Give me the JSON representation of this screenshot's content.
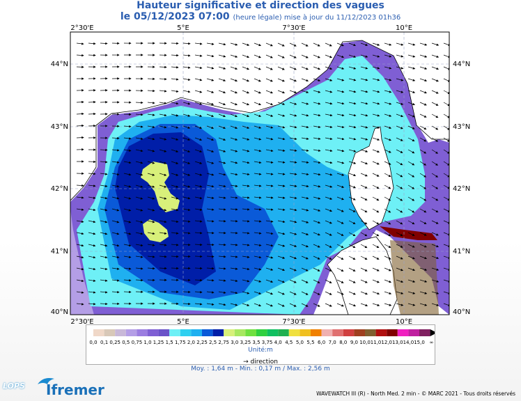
{
  "header": {
    "title": "Hauteur significative et direction des vagues",
    "date": "le 05/12/2023 07:00",
    "update_note": "(heure légale) mise à jour du 11/12/2023 01h36"
  },
  "axes": {
    "lon_labels": [
      "2°30'E",
      "5°E",
      "7°30'E",
      "10°E"
    ],
    "lat_labels": [
      "44°N",
      "43°N",
      "42°N",
      "41°N",
      "40°N"
    ]
  },
  "legend": {
    "scale_values": [
      "0,0",
      "0,1",
      "0,25",
      "0,5",
      "0,75",
      "1,0",
      "1,25",
      "1,5",
      "1,75",
      "2,0",
      "2,25",
      "2,5",
      "2,75",
      "3,0",
      "3,25",
      "3,5",
      "3,75",
      "4,0",
      "4,5",
      "5,0",
      "5,5",
      "6,0",
      "7,0",
      "8,0",
      "9,0",
      "10,0",
      "11,0",
      "12,0",
      "13,0",
      "14,0",
      "15,0"
    ],
    "colors": [
      "#f0d8c8",
      "#d8c8b8",
      "#c8b8d8",
      "#b49ee6",
      "#9b7de0",
      "#7f5fd4",
      "#6a52c8",
      "#6ef0f6",
      "#2fd0f0",
      "#1fb0f0",
      "#0a5ad8",
      "#001ea8",
      "#d8f07a",
      "#a8e860",
      "#70e040",
      "#30d040",
      "#10c060",
      "#20b050",
      "#f0e040",
      "#f0c020",
      "#f08000",
      "#f0b0b0",
      "#e07070",
      "#d04040",
      "#a04020",
      "#806030",
      "#b01010",
      "#800000",
      "#f020c0",
      "#c020a0",
      "#802060"
    ],
    "unit": "Unité:m",
    "direction_label": "direction",
    "infinity": "∞"
  },
  "stats": "Moy. : 1,64 m   -   Min. : 0,17 m / Max. : 2,56 m",
  "footer": "WAVEWATCH III (R) - North Med. 2 min - © MARC 2021 - Tous droits réservés",
  "logos": {
    "lops": "LOPS",
    "ifremer": "Ifremer"
  }
}
